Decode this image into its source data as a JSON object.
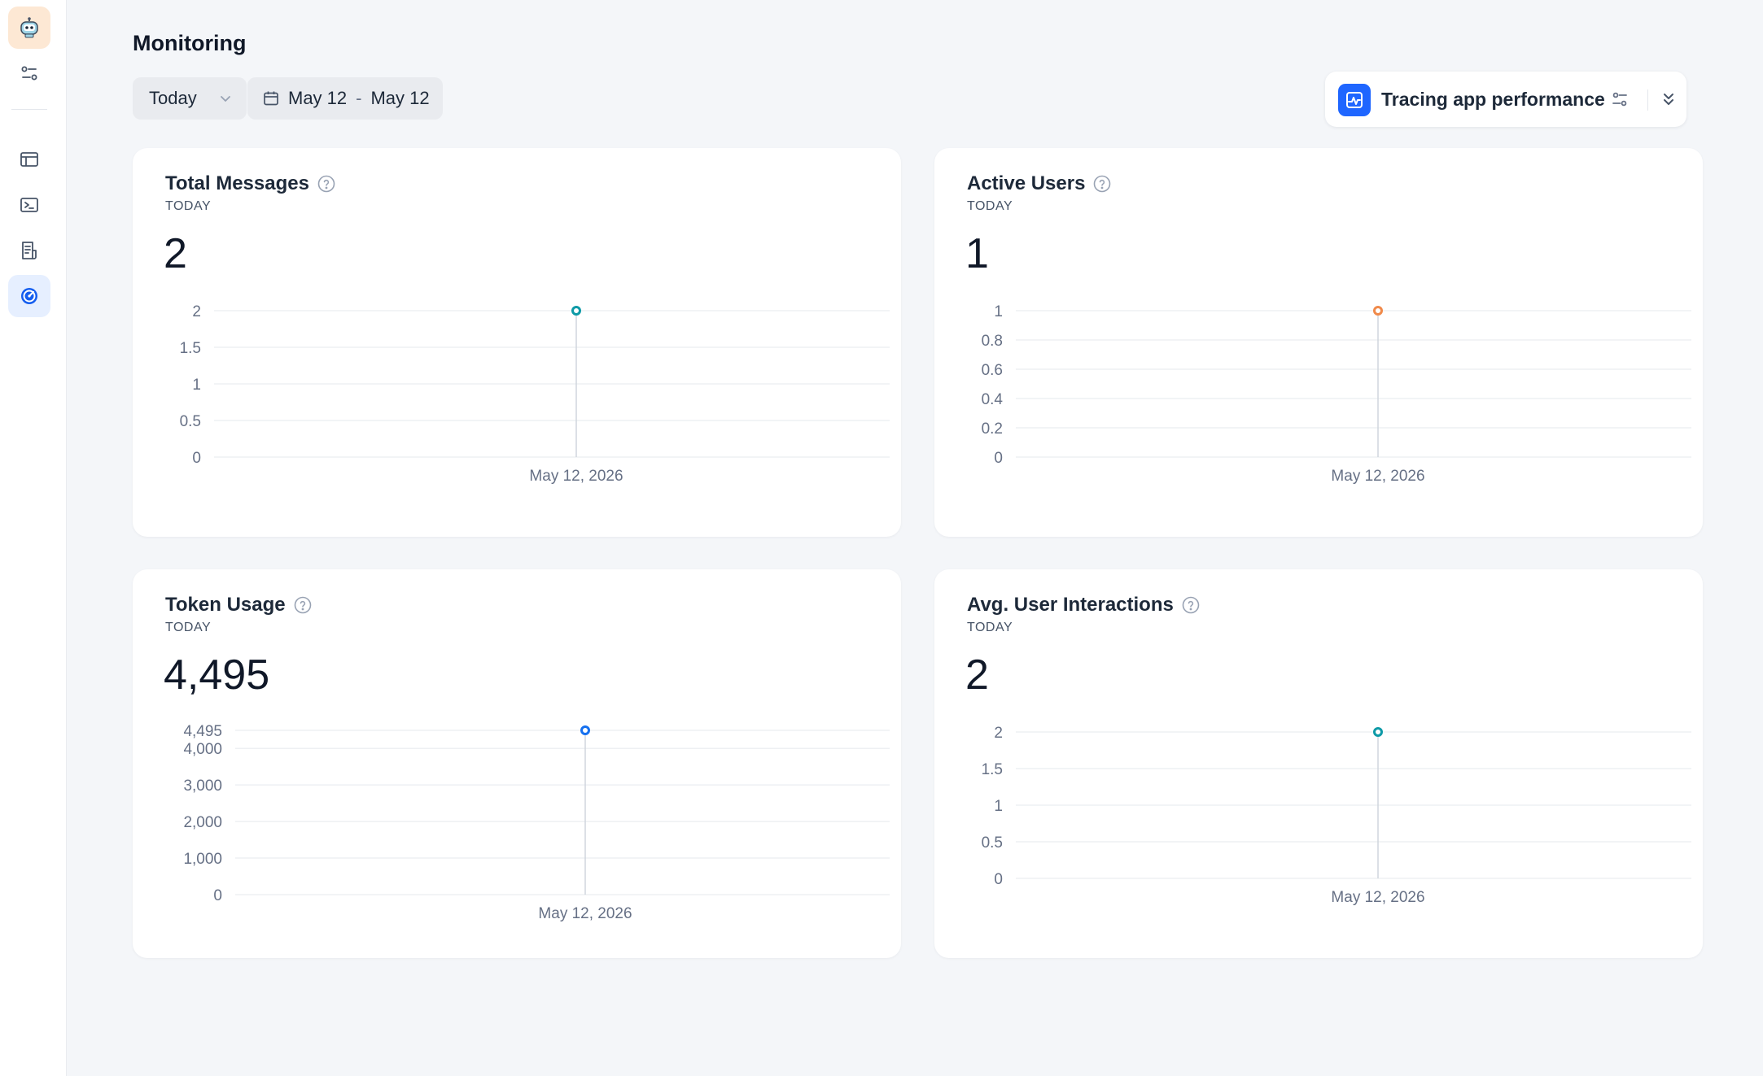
{
  "page": {
    "title": "Monitoring"
  },
  "filters": {
    "period": "Today",
    "date_start": "May 12",
    "date_separator": "-",
    "date_end": "May 12"
  },
  "tracing": {
    "label": "Tracing app performance"
  },
  "sidebar": {
    "items": [
      {
        "icon": "robot-app-icon"
      },
      {
        "icon": "settings-sliders-icon"
      },
      {
        "icon": "window-layout-icon"
      },
      {
        "icon": "terminal-icon"
      },
      {
        "icon": "document-list-icon"
      },
      {
        "icon": "monitoring-gauge-icon",
        "active": true
      }
    ]
  },
  "colors": {
    "accent": "#1f66ff",
    "teal": "#0e9aa7",
    "orange": "#f08a4b",
    "blue": "#1570ef"
  },
  "cards": [
    {
      "title": "Total Messages",
      "subtitle": "TODAY",
      "value": "2"
    },
    {
      "title": "Active Users",
      "subtitle": "TODAY",
      "value": "1"
    },
    {
      "title": "Token Usage",
      "subtitle": "TODAY",
      "value": "4,495"
    },
    {
      "title": "Avg. User Interactions",
      "subtitle": "TODAY",
      "value": "2"
    }
  ],
  "chart_data": [
    {
      "type": "line",
      "x": [
        "May 12, 2026"
      ],
      "values": [
        2
      ],
      "ylim": [
        0,
        2
      ],
      "yticks": [
        0,
        0.5,
        1,
        1.5,
        2
      ],
      "ytick_labels": [
        "0",
        "0.5",
        "1",
        "1.5",
        "2"
      ],
      "color": "#0e9aa7"
    },
    {
      "type": "line",
      "x": [
        "May 12, 2026"
      ],
      "values": [
        1
      ],
      "ylim": [
        0,
        1
      ],
      "yticks": [
        0,
        0.2,
        0.4,
        0.6,
        0.8,
        1
      ],
      "ytick_labels": [
        "0",
        "0.2",
        "0.4",
        "0.6",
        "0.8",
        "1"
      ],
      "color": "#f08a4b"
    },
    {
      "type": "line",
      "x": [
        "May 12, 2026"
      ],
      "values": [
        4495
      ],
      "ylim": [
        0,
        4495
      ],
      "yticks": [
        0,
        1000,
        2000,
        3000,
        4000,
        4495
      ],
      "ytick_labels": [
        "0",
        "1,000",
        "2,000",
        "3,000",
        "4,000",
        "4,495"
      ],
      "color": "#1570ef"
    },
    {
      "type": "line",
      "x": [
        "May 12, 2026"
      ],
      "values": [
        2
      ],
      "ylim": [
        0,
        2
      ],
      "yticks": [
        0,
        0.5,
        1,
        1.5,
        2
      ],
      "ytick_labels": [
        "0",
        "0.5",
        "1",
        "1.5",
        "2"
      ],
      "color": "#0e9aa7"
    }
  ]
}
